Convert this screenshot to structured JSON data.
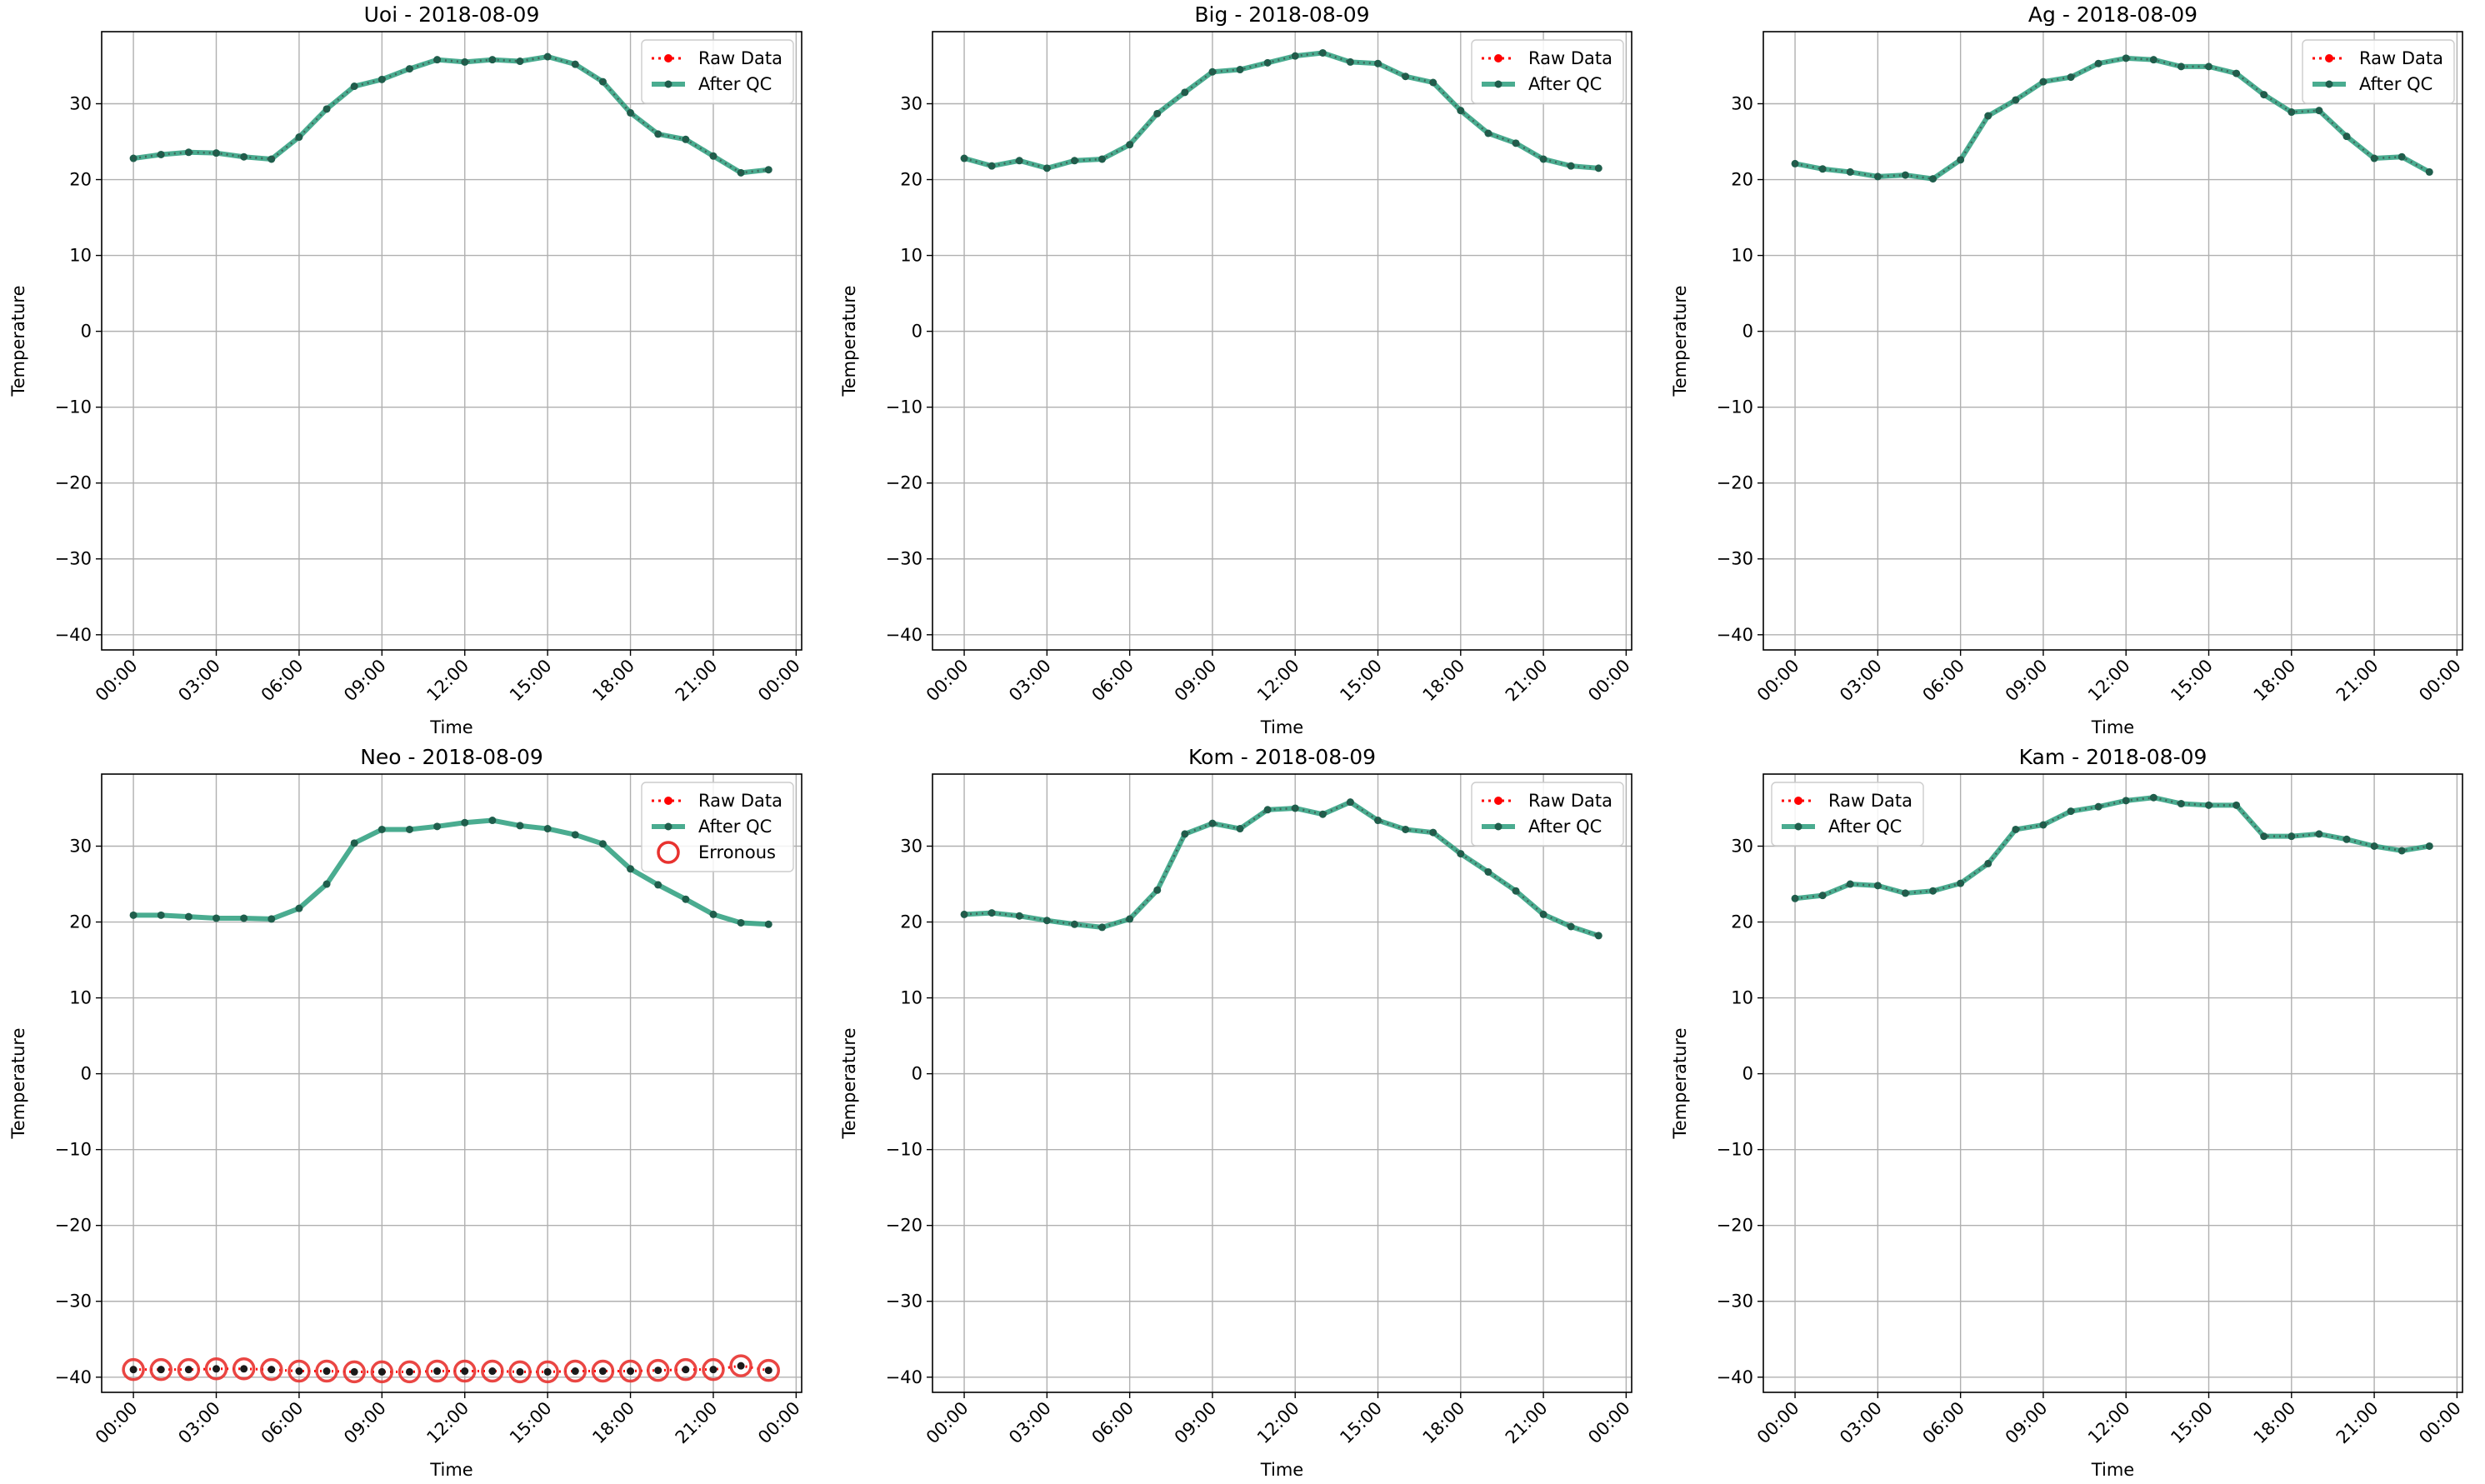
{
  "figure_title": "",
  "colors": {
    "raw": "#ff0000",
    "after_qc": "#2a9d7c",
    "after_qc_marker": "#1f5e4c",
    "erroneous": "#e8322f",
    "grid": "#b0b0b0"
  },
  "chart_data": [
    {
      "type": "line",
      "title": "Uoi - 2018-08-09",
      "xlabel": "Time",
      "ylabel": "Temperature",
      "ylim": [
        -42,
        39.5
      ],
      "yticks": [
        -40,
        -30,
        -20,
        -10,
        0,
        10,
        20,
        30
      ],
      "xticks": [
        "00:00",
        "03:00",
        "06:00",
        "09:00",
        "12:00",
        "15:00",
        "18:00",
        "21:00",
        "00:00"
      ],
      "legend": [
        "Raw Data",
        "After QC"
      ],
      "legend_loc": "upper right",
      "grid": true,
      "series": [
        {
          "name": "Raw Data",
          "values": [
            22.8,
            23.3,
            23.6,
            23.5,
            23.0,
            22.7,
            25.6,
            29.3,
            32.3,
            33.2,
            34.6,
            35.8,
            35.5,
            35.8,
            35.6,
            36.2,
            35.2,
            32.9,
            28.8,
            26.0,
            25.3,
            23.1,
            20.9,
            21.3
          ]
        },
        {
          "name": "After QC",
          "values": [
            22.8,
            23.3,
            23.6,
            23.5,
            23.0,
            22.7,
            25.6,
            29.3,
            32.3,
            33.2,
            34.6,
            35.8,
            35.5,
            35.8,
            35.6,
            36.2,
            35.2,
            32.9,
            28.8,
            26.0,
            25.3,
            23.1,
            20.9,
            21.3
          ]
        }
      ]
    },
    {
      "type": "line",
      "title": "Big - 2018-08-09",
      "xlabel": "Time",
      "ylabel": "Temperature",
      "ylim": [
        -42,
        39.5
      ],
      "yticks": [
        -40,
        -30,
        -20,
        -10,
        0,
        10,
        20,
        30
      ],
      "xticks": [
        "00:00",
        "03:00",
        "06:00",
        "09:00",
        "12:00",
        "15:00",
        "18:00",
        "21:00",
        "00:00"
      ],
      "legend": [
        "Raw Data",
        "After QC"
      ],
      "legend_loc": "upper right",
      "grid": true,
      "series": [
        {
          "name": "Raw Data",
          "values": [
            22.8,
            21.8,
            22.5,
            21.5,
            22.5,
            22.7,
            24.6,
            28.7,
            31.5,
            34.2,
            34.5,
            35.4,
            36.3,
            36.7,
            35.5,
            35.3,
            33.6,
            32.8,
            29.1,
            26.1,
            24.8,
            22.7,
            21.8,
            21.5
          ]
        },
        {
          "name": "After QC",
          "values": [
            22.8,
            21.8,
            22.5,
            21.5,
            22.5,
            22.7,
            24.6,
            28.7,
            31.5,
            34.2,
            34.5,
            35.4,
            36.3,
            36.7,
            35.5,
            35.3,
            33.6,
            32.8,
            29.1,
            26.1,
            24.8,
            22.7,
            21.8,
            21.5
          ]
        }
      ]
    },
    {
      "type": "line",
      "title": "Ag - 2018-08-09",
      "xlabel": "Time",
      "ylabel": "Temperature",
      "ylim": [
        -42,
        39.5
      ],
      "yticks": [
        -40,
        -30,
        -20,
        -10,
        0,
        10,
        20,
        30
      ],
      "xticks": [
        "00:00",
        "03:00",
        "06:00",
        "09:00",
        "12:00",
        "15:00",
        "18:00",
        "21:00",
        "00:00"
      ],
      "legend": [
        "Raw Data",
        "After QC"
      ],
      "legend_loc": "upper right",
      "grid": true,
      "series": [
        {
          "name": "Raw Data",
          "values": [
            22.1,
            21.4,
            21.0,
            20.4,
            20.6,
            20.1,
            22.6,
            28.4,
            30.5,
            32.9,
            33.5,
            35.3,
            36.0,
            35.8,
            34.9,
            34.9,
            34.0,
            31.2,
            28.9,
            29.1,
            25.7,
            22.8,
            23.0,
            21.0
          ]
        },
        {
          "name": "After QC",
          "values": [
            22.1,
            21.4,
            21.0,
            20.4,
            20.6,
            20.1,
            22.6,
            28.4,
            30.5,
            32.9,
            33.5,
            35.3,
            36.0,
            35.8,
            34.9,
            34.9,
            34.0,
            31.2,
            28.9,
            29.1,
            25.7,
            22.8,
            23.0,
            21.0
          ]
        }
      ]
    },
    {
      "type": "line",
      "title": "Neo - 2018-08-09",
      "xlabel": "Time",
      "ylabel": "Temperature",
      "ylim": [
        -42,
        39.5
      ],
      "yticks": [
        -40,
        -30,
        -20,
        -10,
        0,
        10,
        20,
        30
      ],
      "xticks": [
        "00:00",
        "03:00",
        "06:00",
        "09:00",
        "12:00",
        "15:00",
        "18:00",
        "21:00",
        "00:00"
      ],
      "legend": [
        "Raw Data",
        "After QC",
        "Erronous"
      ],
      "legend_loc": "upper right",
      "grid": true,
      "series": [
        {
          "name": "Raw Data",
          "values": [
            -39.0,
            -39.0,
            -39.0,
            -38.9,
            -38.9,
            -39.0,
            -39.2,
            -39.2,
            -39.3,
            -39.3,
            -39.3,
            -39.2,
            -39.2,
            -39.2,
            -39.3,
            -39.3,
            -39.2,
            -39.2,
            -39.2,
            -39.1,
            -39.0,
            -39.0,
            -38.5,
            -39.1
          ]
        },
        {
          "name": "After QC",
          "values": [
            20.9,
            20.9,
            20.7,
            20.5,
            20.5,
            20.4,
            21.8,
            25.0,
            30.4,
            32.2,
            32.2,
            32.6,
            33.1,
            33.4,
            32.7,
            32.3,
            31.5,
            30.3,
            27.0,
            24.9,
            23.0,
            21.0,
            19.9,
            19.7
          ]
        },
        {
          "name": "Erronous",
          "values": [
            -39.0,
            -39.0,
            -39.0,
            -38.9,
            -38.9,
            -39.0,
            -39.2,
            -39.2,
            -39.3,
            -39.3,
            -39.3,
            -39.2,
            -39.2,
            -39.2,
            -39.3,
            -39.3,
            -39.2,
            -39.2,
            -39.2,
            -39.1,
            -39.0,
            -39.0,
            -38.5,
            -39.1
          ]
        }
      ]
    },
    {
      "type": "line",
      "title": "Kom - 2018-08-09",
      "xlabel": "Time",
      "ylabel": "Temperature",
      "ylim": [
        -42,
        39.5
      ],
      "yticks": [
        -40,
        -30,
        -20,
        -10,
        0,
        10,
        20,
        30
      ],
      "xticks": [
        "00:00",
        "03:00",
        "06:00",
        "09:00",
        "12:00",
        "15:00",
        "18:00",
        "21:00",
        "00:00"
      ],
      "legend": [
        "Raw Data",
        "After QC"
      ],
      "legend_loc": "upper right",
      "grid": true,
      "series": [
        {
          "name": "Raw Data",
          "values": [
            21.0,
            21.2,
            20.8,
            20.2,
            19.7,
            19.3,
            20.4,
            24.2,
            31.6,
            33.0,
            32.3,
            34.8,
            35.0,
            34.2,
            35.8,
            33.4,
            32.2,
            31.8,
            29.0,
            26.6,
            24.1,
            21.0,
            19.4,
            18.2
          ]
        },
        {
          "name": "After QC",
          "values": [
            21.0,
            21.2,
            20.8,
            20.2,
            19.7,
            19.3,
            20.4,
            24.2,
            31.6,
            33.0,
            32.3,
            34.8,
            35.0,
            34.2,
            35.8,
            33.4,
            32.2,
            31.8,
            29.0,
            26.6,
            24.1,
            21.0,
            19.4,
            18.2
          ]
        }
      ]
    },
    {
      "type": "line",
      "title": "Kam - 2018-08-09",
      "xlabel": "Time",
      "ylabel": "Temperature",
      "ylim": [
        -42,
        39.5
      ],
      "yticks": [
        -40,
        -30,
        -20,
        -10,
        0,
        10,
        20,
        30
      ],
      "xticks": [
        "00:00",
        "03:00",
        "06:00",
        "09:00",
        "12:00",
        "15:00",
        "18:00",
        "21:00",
        "00:00"
      ],
      "legend": [
        "Raw Data",
        "After QC"
      ],
      "legend_loc": "upper left",
      "grid": true,
      "series": [
        {
          "name": "Raw Data",
          "values": [
            23.1,
            23.5,
            25.0,
            24.8,
            23.8,
            24.1,
            25.1,
            27.7,
            32.2,
            32.8,
            34.6,
            35.2,
            36.0,
            36.4,
            35.6,
            35.4,
            35.4,
            31.3,
            31.3,
            31.6,
            30.9,
            30.0,
            29.4,
            30.0
          ]
        },
        {
          "name": "After QC",
          "values": [
            23.1,
            23.5,
            25.0,
            24.8,
            23.8,
            24.1,
            25.1,
            27.7,
            32.2,
            32.8,
            34.6,
            35.2,
            36.0,
            36.4,
            35.6,
            35.4,
            35.4,
            31.3,
            31.3,
            31.6,
            30.9,
            30.0,
            29.4,
            30.0
          ]
        }
      ]
    }
  ]
}
